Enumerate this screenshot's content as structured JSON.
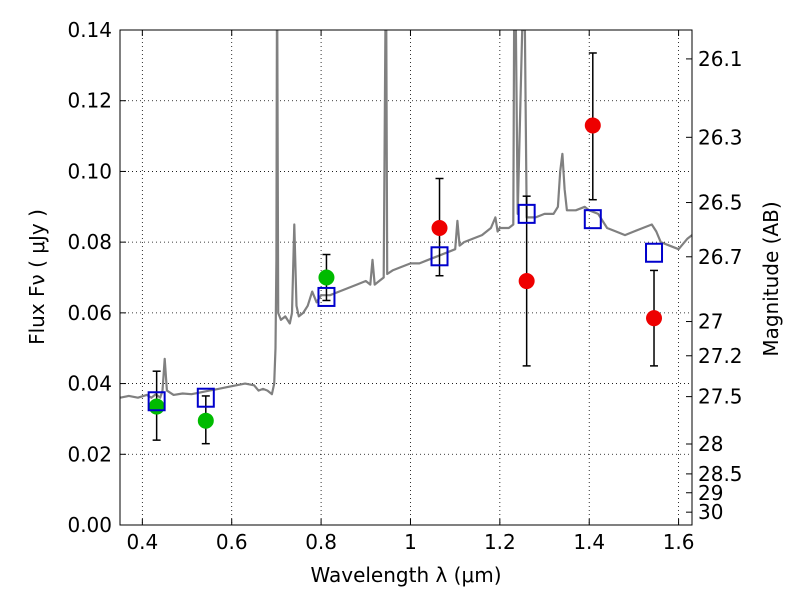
{
  "chart_data": {
    "type": "scatter",
    "xlabel": "Wavelength  λ (μm)",
    "ylabel": "Flux  Fν  ( μJy )",
    "y2label": "Magnitude (AB)",
    "xlim": [
      0.35,
      1.63
    ],
    "ylim": [
      0.0,
      0.14
    ],
    "grid": true,
    "x_ticks": [
      0.4,
      0.6,
      0.8,
      1.0,
      1.2,
      1.4,
      1.6
    ],
    "x_tick_labels": [
      "0.4",
      "0.6",
      "0.8",
      "1",
      "1.2",
      "1.4",
      "1.6"
    ],
    "y_ticks": [
      0.0,
      0.02,
      0.04,
      0.06,
      0.08,
      0.1,
      0.12,
      0.14
    ],
    "y_tick_labels": [
      "0.00",
      "0.02",
      "0.04",
      "0.06",
      "0.08",
      "0.10",
      "0.12",
      "0.14"
    ],
    "y2_ticks": [
      {
        "mag": 26.1,
        "label": "26.1"
      },
      {
        "mag": 26.3,
        "label": "26.3"
      },
      {
        "mag": 26.5,
        "label": "26.5"
      },
      {
        "mag": 26.7,
        "label": "26.7"
      },
      {
        "mag": 27.0,
        "label": "27"
      },
      {
        "mag": 27.2,
        "label": "27.2"
      },
      {
        "mag": 27.5,
        "label": "27.5"
      },
      {
        "mag": 28.0,
        "label": "28"
      },
      {
        "mag": 28.5,
        "label": "28.5"
      },
      {
        "mag": 29.0,
        "label": "29"
      },
      {
        "mag": 30.0,
        "label": "30"
      }
    ],
    "series": [
      {
        "kind": "line",
        "color": "#808080",
        "points": [
          [
            0.35,
            0.036
          ],
          [
            0.37,
            0.0365
          ],
          [
            0.39,
            0.036
          ],
          [
            0.41,
            0.0368
          ],
          [
            0.42,
            0.036
          ],
          [
            0.43,
            0.037
          ],
          [
            0.44,
            0.036
          ],
          [
            0.445,
            0.038
          ],
          [
            0.45,
            0.047
          ],
          [
            0.455,
            0.038
          ],
          [
            0.47,
            0.0368
          ],
          [
            0.49,
            0.0372
          ],
          [
            0.51,
            0.037
          ],
          [
            0.53,
            0.0375
          ],
          [
            0.55,
            0.038
          ],
          [
            0.57,
            0.0385
          ],
          [
            0.59,
            0.039
          ],
          [
            0.61,
            0.0395
          ],
          [
            0.63,
            0.04
          ],
          [
            0.65,
            0.0395
          ],
          [
            0.66,
            0.038
          ],
          [
            0.67,
            0.0385
          ],
          [
            0.68,
            0.038
          ],
          [
            0.69,
            0.037
          ],
          [
            0.695,
            0.04
          ],
          [
            0.698,
            0.05
          ],
          [
            0.7,
            0.075
          ],
          [
            0.701,
            0.14
          ],
          [
            0.702,
            0.14
          ],
          [
            0.704,
            0.06
          ],
          [
            0.71,
            0.058
          ],
          [
            0.72,
            0.059
          ],
          [
            0.73,
            0.057
          ],
          [
            0.735,
            0.06
          ],
          [
            0.74,
            0.085
          ],
          [
            0.745,
            0.062
          ],
          [
            0.75,
            0.059
          ],
          [
            0.76,
            0.06
          ],
          [
            0.77,
            0.062
          ],
          [
            0.78,
            0.066
          ],
          [
            0.79,
            0.063
          ],
          [
            0.8,
            0.065
          ],
          [
            0.82,
            0.065
          ],
          [
            0.84,
            0.066
          ],
          [
            0.86,
            0.067
          ],
          [
            0.88,
            0.068
          ],
          [
            0.9,
            0.069
          ],
          [
            0.91,
            0.068
          ],
          [
            0.915,
            0.075
          ],
          [
            0.92,
            0.068
          ],
          [
            0.93,
            0.069
          ],
          [
            0.94,
            0.07
          ],
          [
            0.944,
            0.14
          ],
          [
            0.946,
            0.14
          ],
          [
            0.948,
            0.071
          ],
          [
            0.96,
            0.072
          ],
          [
            0.98,
            0.073
          ],
          [
            1.0,
            0.074
          ],
          [
            1.02,
            0.074
          ],
          [
            1.04,
            0.075
          ],
          [
            1.06,
            0.076
          ],
          [
            1.08,
            0.077
          ],
          [
            1.1,
            0.078
          ],
          [
            1.105,
            0.086
          ],
          [
            1.11,
            0.079
          ],
          [
            1.12,
            0.08
          ],
          [
            1.14,
            0.081
          ],
          [
            1.16,
            0.082
          ],
          [
            1.18,
            0.084
          ],
          [
            1.19,
            0.087
          ],
          [
            1.195,
            0.083
          ],
          [
            1.2,
            0.084
          ],
          [
            1.22,
            0.084
          ],
          [
            1.23,
            0.085
          ],
          [
            1.232,
            0.14
          ],
          [
            1.236,
            0.14
          ],
          [
            1.24,
            0.088
          ],
          [
            1.25,
            0.14
          ],
          [
            1.256,
            0.14
          ],
          [
            1.26,
            0.087
          ],
          [
            1.28,
            0.087
          ],
          [
            1.3,
            0.088
          ],
          [
            1.32,
            0.088
          ],
          [
            1.33,
            0.09
          ],
          [
            1.335,
            0.1
          ],
          [
            1.34,
            0.105
          ],
          [
            1.345,
            0.095
          ],
          [
            1.35,
            0.089
          ],
          [
            1.37,
            0.089
          ],
          [
            1.39,
            0.09
          ],
          [
            1.4,
            0.089
          ],
          [
            1.42,
            0.088
          ],
          [
            1.44,
            0.084
          ],
          [
            1.46,
            0.083
          ],
          [
            1.48,
            0.082
          ],
          [
            1.5,
            0.083
          ],
          [
            1.52,
            0.084
          ],
          [
            1.54,
            0.085
          ],
          [
            1.55,
            0.083
          ],
          [
            1.56,
            0.08
          ],
          [
            1.58,
            0.079
          ],
          [
            1.6,
            0.078
          ],
          [
            1.62,
            0.081
          ],
          [
            1.63,
            0.082
          ]
        ]
      },
      {
        "kind": "points",
        "color": "#00bb00",
        "points": [
          {
            "x": 0.432,
            "y": 0.0335,
            "ylo": 0.024,
            "yhi": 0.0435
          },
          {
            "x": 0.542,
            "y": 0.0295,
            "ylo": 0.023,
            "yhi": 0.0365
          },
          {
            "x": 0.812,
            "y": 0.07,
            "ylo": 0.0635,
            "yhi": 0.0765
          }
        ]
      },
      {
        "kind": "points",
        "color": "#ee0000",
        "points": [
          {
            "x": 1.065,
            "y": 0.084,
            "ylo": 0.0705,
            "yhi": 0.098
          },
          {
            "x": 1.26,
            "y": 0.069,
            "ylo": 0.045,
            "yhi": 0.093
          },
          {
            "x": 1.408,
            "y": 0.113,
            "ylo": 0.092,
            "yhi": 0.1335
          },
          {
            "x": 1.545,
            "y": 0.0585,
            "ylo": 0.045,
            "yhi": 0.072
          }
        ]
      },
      {
        "kind": "squares",
        "color": "#0000cc",
        "points": [
          {
            "x": 0.432,
            "y": 0.035
          },
          {
            "x": 0.542,
            "y": 0.036
          },
          {
            "x": 0.812,
            "y": 0.0645
          },
          {
            "x": 1.065,
            "y": 0.076
          },
          {
            "x": 1.26,
            "y": 0.088
          },
          {
            "x": 1.408,
            "y": 0.0865
          },
          {
            "x": 1.545,
            "y": 0.077
          }
        ]
      }
    ]
  }
}
